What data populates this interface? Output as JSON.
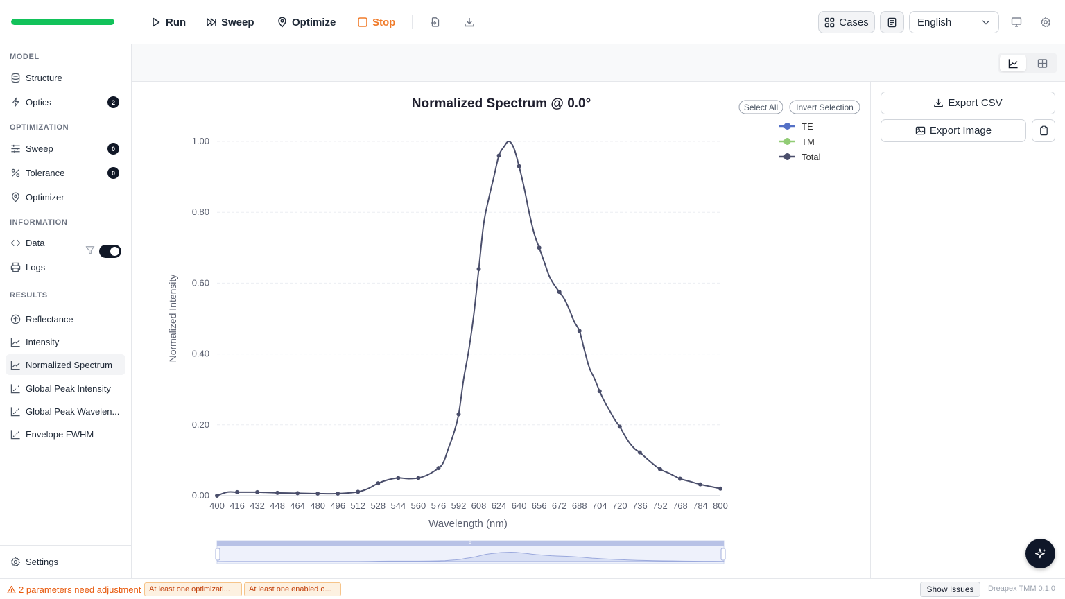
{
  "toolbar": {
    "progress": 1.0,
    "run": "Run",
    "sweep": "Sweep",
    "optimize": "Optimize",
    "stop": "Stop",
    "cases": "Cases",
    "language": "English"
  },
  "sidebar": {
    "model_title": "MODEL",
    "optimization_title": "OPTIMIZATION",
    "information_title": "INFORMATION",
    "results_title": "RESULTS",
    "results_toggle_on": true,
    "items": {
      "structure": "Structure",
      "optics": "Optics",
      "optics_badge": "2",
      "sweep": "Sweep",
      "sweep_badge": "0",
      "tolerance": "Tolerance",
      "tolerance_badge": "0",
      "optimizer": "Optimizer",
      "data": "Data",
      "logs": "Logs",
      "reflectance": "Reflectance",
      "intensity": "Intensity",
      "normalized_spectrum": "Normalized Spectrum",
      "global_peak_intensity": "Global Peak Intensity",
      "global_peak_wavelength": "Global Peak Wavelen...",
      "envelope_fwhm": "Envelope FWHM",
      "settings": "Settings"
    }
  },
  "legend_controls": {
    "select_all": "Select All",
    "invert_selection": "Invert Selection"
  },
  "right_panel": {
    "export_csv": "Export CSV",
    "export_image": "Export Image"
  },
  "statusbar": {
    "warning": "2 parameters need adjustment",
    "chip1": "At least one optimizati...",
    "chip2": "At least one enabled o...",
    "show_issues": "Show Issues",
    "version": "Dreapex TMM 0.1.0"
  },
  "colors": {
    "progress": "#12c25a",
    "te": "#5470c6",
    "tm": "#91cc75",
    "total": "#4a4e6b",
    "stop": "#f07b2a"
  },
  "chart_data": {
    "type": "line",
    "title": "Normalized Spectrum @ 0.0°",
    "xlabel": "Wavelength (nm)",
    "ylabel": "Normalized Intensity",
    "xlim": [
      400,
      800
    ],
    "ylim": [
      0,
      1
    ],
    "x_ticks": [
      400,
      416,
      432,
      448,
      464,
      480,
      496,
      512,
      528,
      544,
      560,
      576,
      592,
      608,
      624,
      640,
      656,
      672,
      688,
      704,
      720,
      736,
      752,
      768,
      784,
      800
    ],
    "y_ticks": [
      "0.00",
      "0.20",
      "0.40",
      "0.60",
      "0.80",
      "1.00"
    ],
    "legend": [
      "TE",
      "TM",
      "Total"
    ],
    "legend_position": "top-right",
    "grid": true,
    "series": [
      {
        "name": "Total",
        "x": [
          400,
          408,
          416,
          432,
          448,
          464,
          480,
          496,
          512,
          520,
          528,
          536,
          544,
          552,
          560,
          568,
          576,
          580,
          584,
          588,
          592,
          596,
          600,
          604,
          608,
          612,
          616,
          620,
          624,
          628,
          632,
          636,
          640,
          644,
          648,
          652,
          656,
          660,
          664,
          668,
          672,
          676,
          680,
          684,
          688,
          692,
          696,
          700,
          704,
          708,
          712,
          716,
          720,
          724,
          728,
          732,
          736,
          744,
          752,
          760,
          768,
          776,
          784,
          792,
          800
        ],
        "y": [
          0.0,
          0.01,
          0.01,
          0.01,
          0.008,
          0.007,
          0.006,
          0.006,
          0.011,
          0.02,
          0.035,
          0.045,
          0.05,
          0.048,
          0.05,
          0.06,
          0.078,
          0.095,
          0.135,
          0.175,
          0.23,
          0.33,
          0.41,
          0.51,
          0.64,
          0.77,
          0.84,
          0.9,
          0.96,
          0.985,
          1.0,
          0.98,
          0.93,
          0.87,
          0.8,
          0.74,
          0.7,
          0.66,
          0.62,
          0.595,
          0.575,
          0.555,
          0.525,
          0.49,
          0.465,
          0.41,
          0.36,
          0.33,
          0.295,
          0.265,
          0.24,
          0.215,
          0.195,
          0.17,
          0.148,
          0.132,
          0.122,
          0.097,
          0.075,
          0.062,
          0.048,
          0.04,
          0.032,
          0.026,
          0.02
        ],
        "markers": [
          400,
          416,
          432,
          448,
          464,
          480,
          496,
          512,
          528,
          544,
          560,
          576,
          592,
          608,
          624,
          640,
          656,
          672,
          688,
          704,
          720,
          736,
          752,
          768,
          784,
          800
        ]
      }
    ]
  }
}
